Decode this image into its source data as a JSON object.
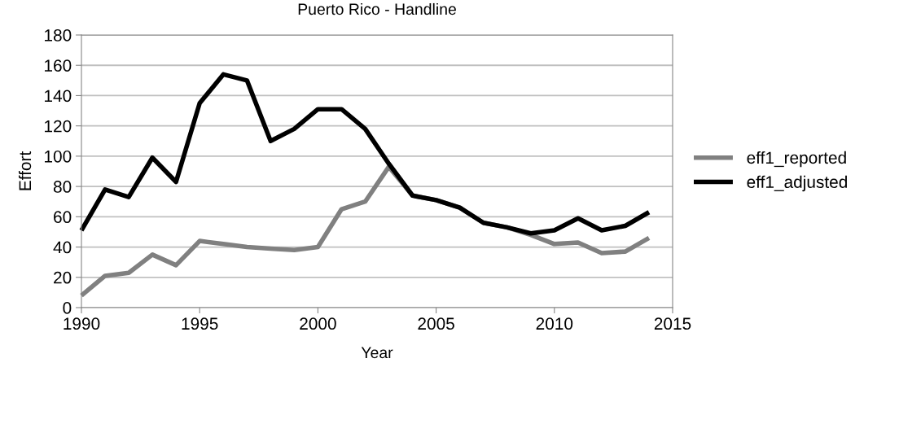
{
  "chart_data": {
    "type": "line",
    "title": "Puerto Rico - Handline",
    "xlabel": "Year",
    "ylabel": "Effort",
    "x": [
      1990,
      1991,
      1992,
      1993,
      1994,
      1995,
      1996,
      1997,
      1998,
      1999,
      2000,
      2001,
      2002,
      2003,
      2004,
      2005,
      2006,
      2007,
      2008,
      2009,
      2010,
      2011,
      2012,
      2013,
      2014
    ],
    "series": [
      {
        "name": "eff1_reported",
        "color": "#808080",
        "values": [
          8,
          21,
          23,
          35,
          28,
          44,
          42,
          40,
          39,
          38,
          40,
          65,
          70,
          93,
          74,
          71,
          66,
          56,
          53,
          48,
          42,
          43,
          36,
          37,
          46
        ]
      },
      {
        "name": "eff1_adjusted",
        "color": "#000000",
        "values": [
          51,
          78,
          73,
          99,
          83,
          135,
          154,
          150,
          110,
          118,
          131,
          131,
          118,
          95,
          74,
          71,
          66,
          56,
          53,
          49,
          51,
          59,
          51,
          54,
          63
        ]
      }
    ],
    "xlim": [
      1990,
      2015
    ],
    "xticks": [
      1990,
      1995,
      2000,
      2005,
      2010,
      2015
    ],
    "ylim": [
      0,
      180
    ],
    "yticks": [
      0,
      20,
      40,
      60,
      80,
      100,
      120,
      140,
      160,
      180
    ],
    "grid": "y",
    "legend": "right",
    "marker": "none",
    "line_style": "solid"
  }
}
